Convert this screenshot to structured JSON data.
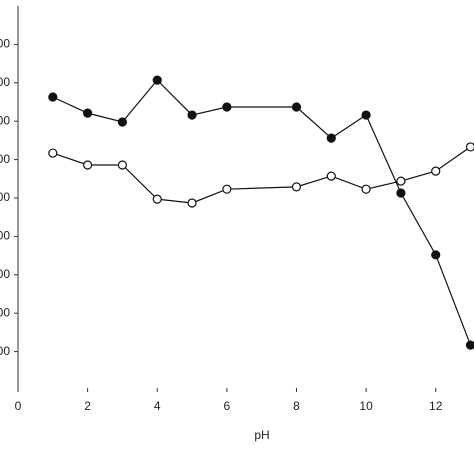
{
  "chart_data": {
    "type": "line",
    "x_label": "pH",
    "x": [
      1,
      2,
      3,
      4,
      5,
      6,
      8,
      9,
      10,
      11,
      12,
      13
    ],
    "series": [
      {
        "marker": "filled",
        "color": "#111111",
        "values": [
          7.63,
          7.21,
          6.98,
          8.07,
          7.16,
          7.37,
          7.37,
          6.56,
          7.16,
          5.13,
          3.52,
          1.17
        ]
      },
      {
        "marker": "open",
        "color": "#111111",
        "values": [
          6.17,
          5.86,
          5.86,
          4.97,
          4.87,
          5.23,
          5.29,
          5.57,
          5.23,
          5.44,
          5.7,
          6.33
        ]
      }
    ],
    "xlim": [
      0,
      13.1
    ],
    "xticks": [
      0,
      2,
      4,
      6,
      8,
      10,
      12
    ],
    "ylim": [
      0,
      10
    ],
    "yticks": [
      {
        "value": 1,
        "label": "00"
      },
      {
        "value": 2,
        "label": "00"
      },
      {
        "value": 3,
        "label": "00"
      },
      {
        "value": 4,
        "label": "00"
      },
      {
        "value": 5,
        "label": "00"
      },
      {
        "value": 6,
        "label": "00"
      },
      {
        "value": 7,
        "label": "00"
      },
      {
        "value": 8,
        "label": "00"
      },
      {
        "value": 9,
        "label": "00"
      }
    ]
  }
}
